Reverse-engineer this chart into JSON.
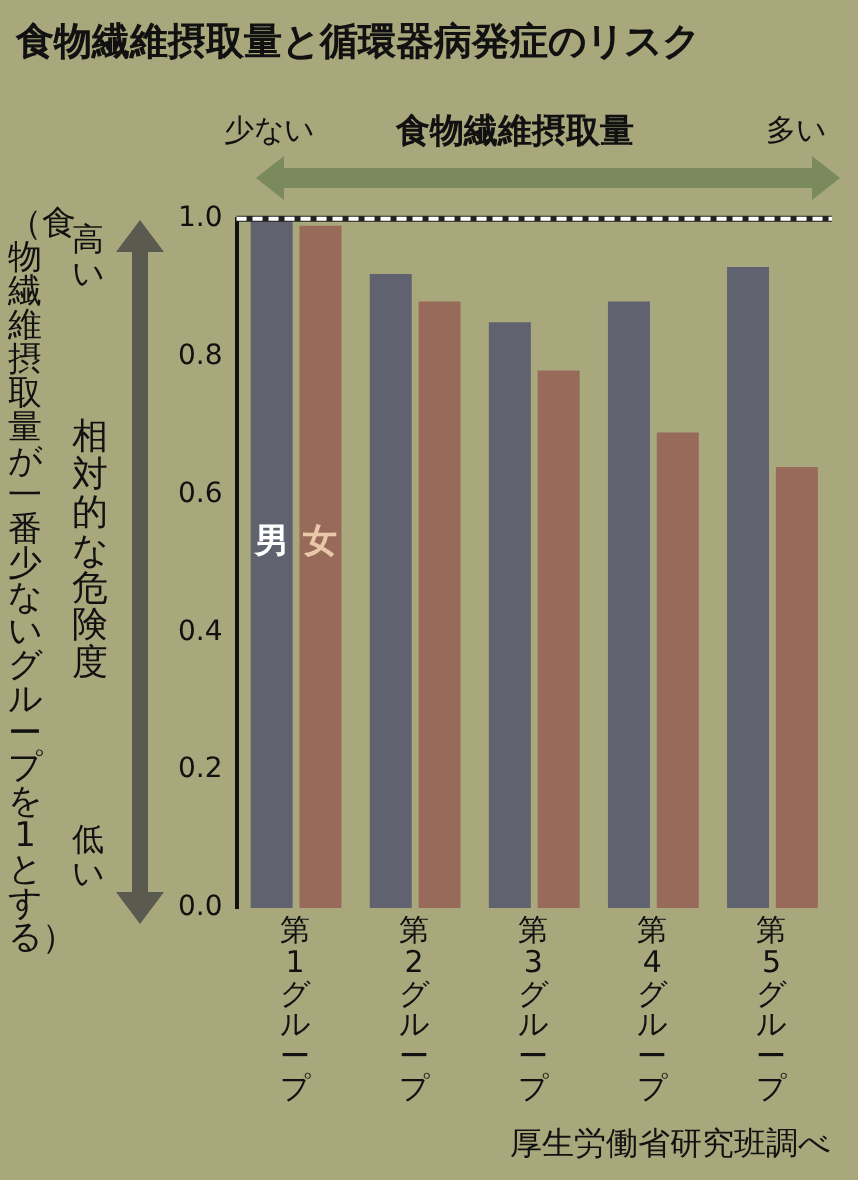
{
  "chart_data": {
    "type": "bar",
    "title": "食物繊維摂取量と循環器病発症のリスク",
    "xlabel": "食物繊維摂取量",
    "ylabel": "相対的な危険度",
    "categories": [
      "第1グループ",
      "第2グループ",
      "第3グループ",
      "第4グループ",
      "第5グループ"
    ],
    "series": [
      {
        "name": "男",
        "color": "#60636f",
        "values": [
          1.0,
          0.92,
          0.85,
          0.88,
          0.93
        ]
      },
      {
        "name": "女",
        "color": "#986a5a",
        "values": [
          0.99,
          0.88,
          0.78,
          0.69,
          0.64
        ]
      }
    ],
    "ylim": [
      0,
      1.0
    ],
    "yticks": [
      {
        "value": 0,
        "label": "0.0"
      },
      {
        "value": 0.2,
        "label": "0.2"
      },
      {
        "value": 0.4,
        "label": "0.4"
      },
      {
        "value": 0.6,
        "label": "0.6"
      },
      {
        "value": 0.8,
        "label": "0.8"
      },
      {
        "value": 1.0,
        "label": "1.0"
      }
    ],
    "ref_lines": [
      {
        "axis": "y",
        "value": 1.0,
        "color": "#ffffff",
        "line_style": "dashed"
      }
    ],
    "annotations": [
      "高い",
      "低い",
      "少ない",
      "多い",
      "（食物繊維摂取量が一番少ないグループを1とする）",
      "厚生労働省研究班調べ"
    ]
  }
}
